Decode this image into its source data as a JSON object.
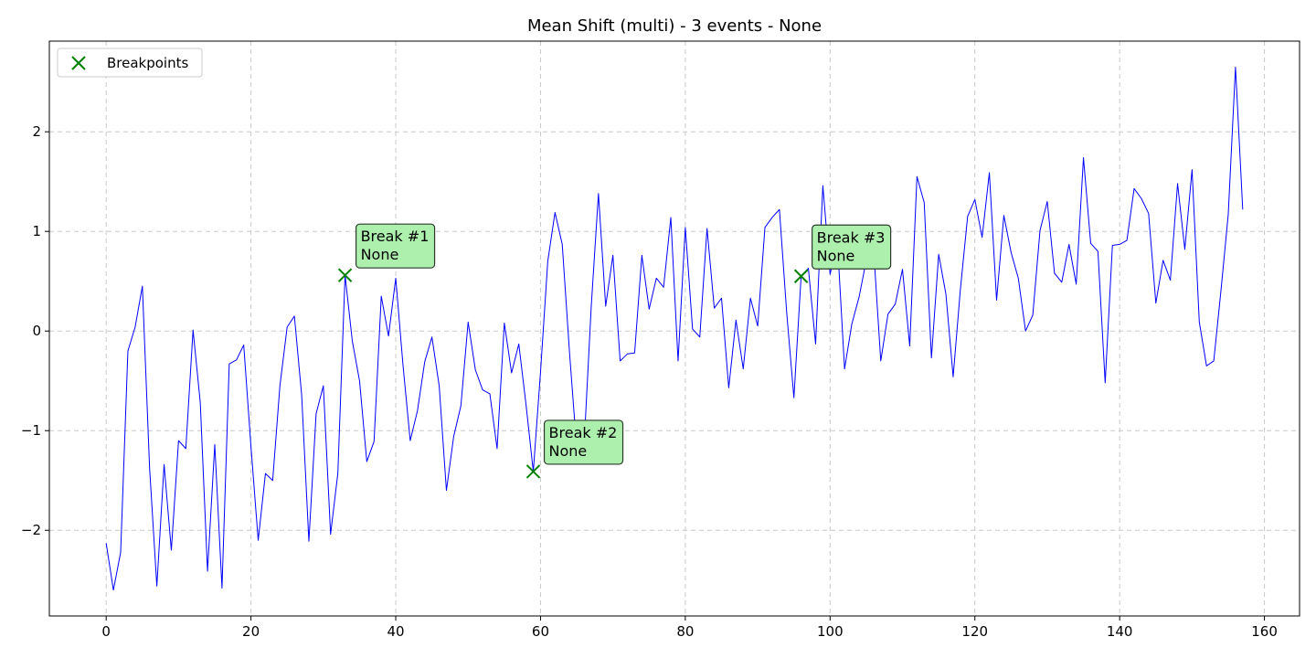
{
  "chart_data": {
    "type": "line",
    "title": "Mean Shift (multi) - 3 events - None",
    "xlabel": "",
    "ylabel": "",
    "xlim": [
      -7.85,
      164.85
    ],
    "ylim": [
      -2.86,
      2.91
    ],
    "x_ticks": [
      0,
      20,
      40,
      60,
      80,
      100,
      120,
      140,
      160
    ],
    "y_ticks": [
      -2,
      -1,
      0,
      1,
      2
    ],
    "x_tick_labels": [
      "0",
      "20",
      "40",
      "60",
      "80",
      "100",
      "120",
      "140",
      "160"
    ],
    "y_tick_labels": [
      "−2",
      "−1",
      "0",
      "1",
      "2"
    ],
    "grid": true,
    "legend": {
      "position": "top-left",
      "entries": [
        "Breakpoints"
      ]
    },
    "series": [
      {
        "color": "#0000ff",
        "y": [
          -2.13,
          -2.6,
          -2.22,
          -0.2,
          0.04,
          0.45,
          -1.38,
          -2.56,
          -1.34,
          -2.2,
          -1.1,
          -1.18,
          0.01,
          -0.72,
          -2.41,
          -1.14,
          -2.58,
          -0.33,
          -0.29,
          -0.14,
          -1.16,
          -2.1,
          -1.43,
          -1.5,
          -0.55,
          0.04,
          0.15,
          -0.64,
          -2.11,
          -0.83,
          -0.55,
          -2.04,
          -1.43,
          0.56,
          -0.1,
          -0.5,
          -1.31,
          -1.11,
          0.35,
          -0.05,
          0.53,
          -0.34,
          -1.1,
          -0.8,
          -0.31,
          -0.06,
          -0.55,
          -1.6,
          -1.06,
          -0.75,
          0.09,
          -0.39,
          -0.59,
          -0.63,
          -1.18,
          0.08,
          -0.42,
          -0.13,
          -0.74,
          -1.41,
          -0.41,
          0.7,
          1.19,
          0.87,
          -0.21,
          -1.18,
          -1.17,
          0.24,
          1.38,
          0.25,
          0.76,
          -0.3,
          -0.23,
          -0.22,
          0.76,
          0.22,
          0.53,
          0.44,
          1.14,
          -0.3,
          1.04,
          0.02,
          -0.06,
          1.03,
          0.23,
          0.33,
          -0.57,
          0.11,
          -0.38,
          0.33,
          0.05,
          1.04,
          1.14,
          1.22,
          0.19,
          -0.67,
          0.55,
          0.63,
          -0.13,
          1.46,
          0.57,
          0.91,
          -0.38,
          0.07,
          0.34,
          0.71,
          0.83,
          -0.3,
          0.17,
          0.27,
          0.62,
          -0.15,
          1.55,
          1.29,
          -0.27,
          0.77,
          0.37,
          -0.46,
          0.42,
          1.15,
          1.32,
          0.94,
          1.59,
          0.31,
          1.16,
          0.79,
          0.53,
          0.0,
          0.16,
          1.01,
          1.3,
          0.58,
          0.49,
          0.87,
          0.47,
          1.74,
          0.88,
          0.8,
          -0.52,
          0.86,
          0.87,
          0.91,
          1.43,
          1.33,
          1.18,
          0.28,
          0.71,
          0.51,
          1.48,
          0.82,
          1.62,
          0.09,
          -0.35,
          -0.3,
          0.41,
          1.17,
          2.65,
          1.22
        ]
      }
    ],
    "breakpoints": {
      "name": "Breakpoints",
      "color": "#008000",
      "points": [
        {
          "x": 33,
          "y": 0.56,
          "label_line1": "Break #1",
          "label_line2": "None"
        },
        {
          "x": 59,
          "y": -1.41,
          "label_line1": "Break #2",
          "label_line2": "None"
        },
        {
          "x": 96,
          "y": 0.55,
          "label_line1": "Break #3",
          "label_line2": "None"
        }
      ]
    },
    "annotation_style": {
      "box_fill": "#adf0ad",
      "box_border": "#2b3a2b"
    }
  }
}
